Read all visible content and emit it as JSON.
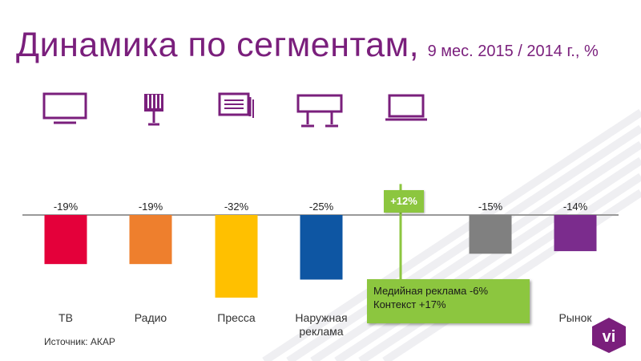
{
  "title": {
    "main": "Динамика по сегментам,",
    "sub": "9 мес. 2015 / 2014 г., %"
  },
  "icons": [
    "tv-icon",
    "radio-icon",
    "press-icon",
    "billboard-icon",
    "laptop-icon"
  ],
  "colors": {
    "brand_purple": "#7a1f7c",
    "green": "#8cc63f"
  },
  "chart_data": {
    "type": "bar",
    "categories": [
      "ТВ",
      "Радио",
      "Пресса",
      "Наружная реклама",
      "",
      "",
      "Рынок"
    ],
    "values": [
      -19,
      -19,
      -32,
      -25,
      12,
      -15,
      -14
    ],
    "value_labels": [
      "-19%",
      "-19%",
      "-32%",
      "-25%",
      "+12%",
      "-15%",
      "-14%"
    ],
    "colors": [
      "#e4003a",
      "#ee7f2d",
      "#ffc000",
      "#0e56a3",
      "#8cc63f",
      "#808080",
      "#7b2c8d"
    ],
    "ylim": [
      -35,
      15
    ]
  },
  "callout": {
    "line1": "Медийная реклама   -6%",
    "line2": "Контекст  +17%"
  },
  "source": "Источник: АКАР",
  "logo_text": "vi"
}
